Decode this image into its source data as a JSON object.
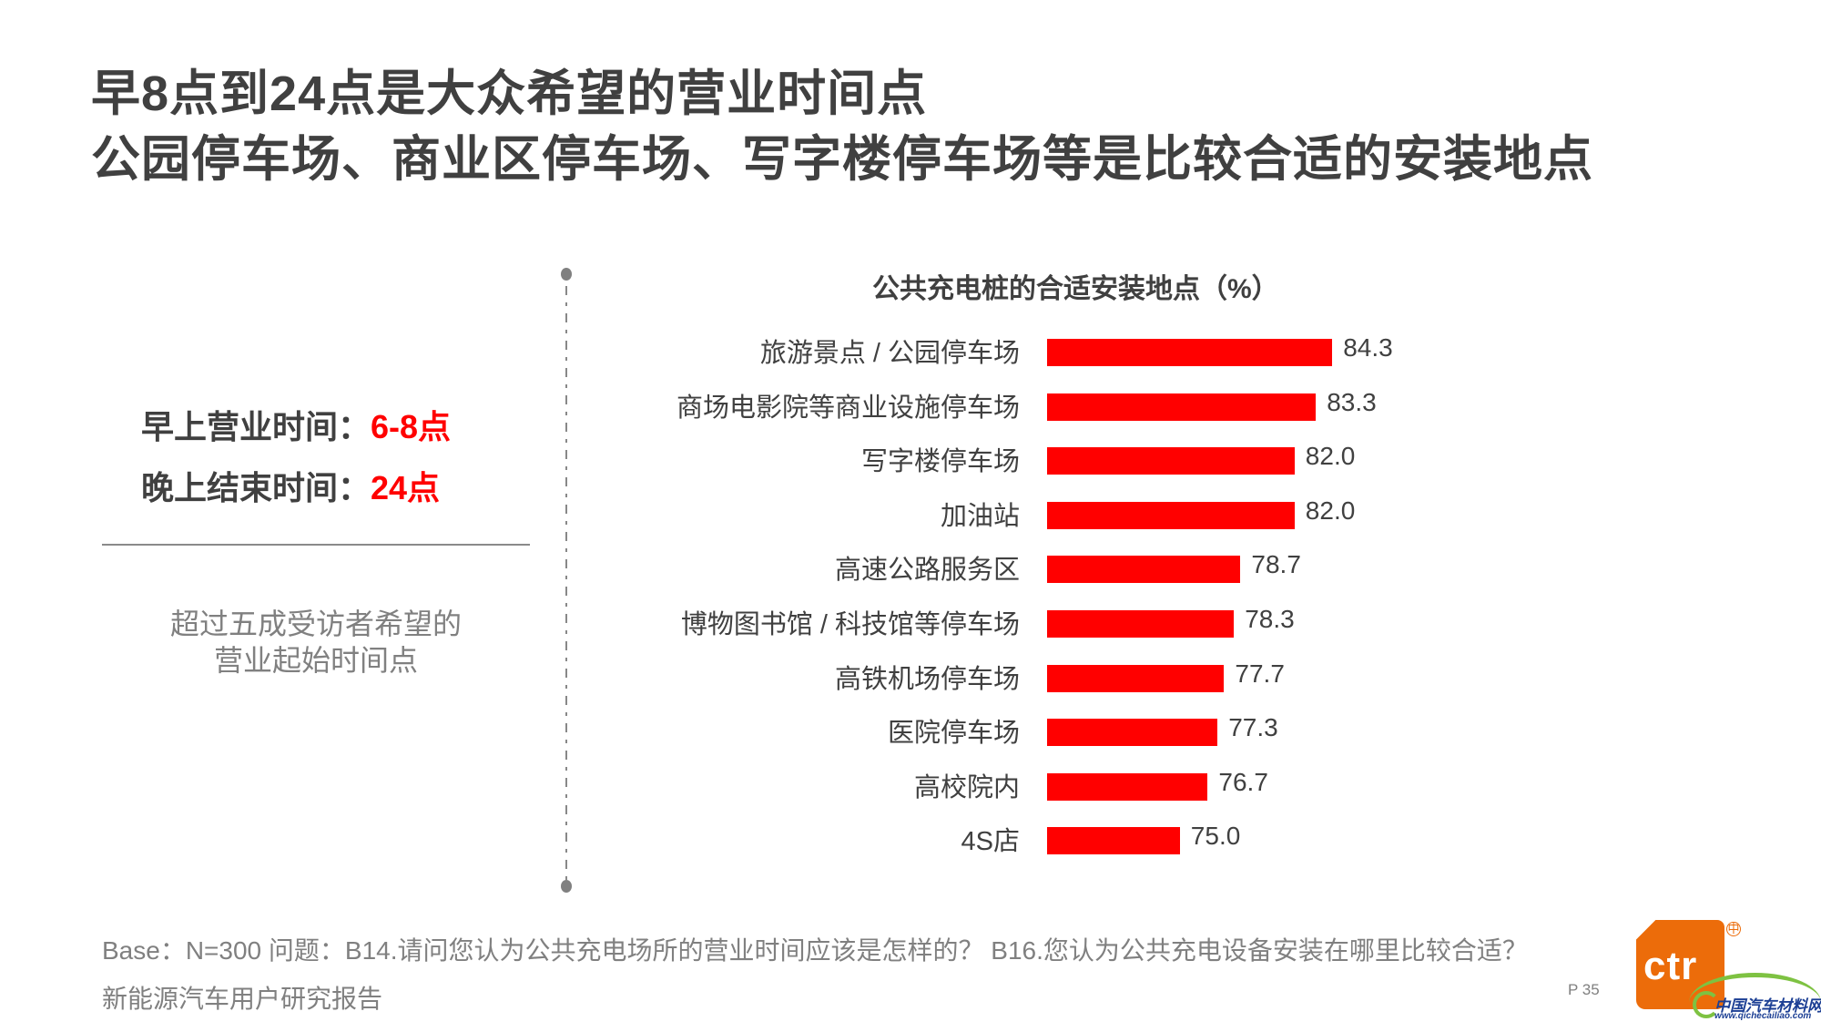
{
  "header": {
    "title_line1": "早8点到24点是大众希望的营业时间点",
    "title_line2": "公园停车场、商业区停车场、写字楼停车场等是比较合适的安装地点"
  },
  "left_panel": {
    "morning_label": "早上营业时间：",
    "morning_value": "6-8点",
    "evening_label": "晚上结束时间：",
    "evening_value": "24点",
    "note_line1": "超过五成受访者希望的",
    "note_line2": "营业起始时间点"
  },
  "colors": {
    "bar": "#ff0000",
    "highlight": "#ff0000",
    "text": "#404040",
    "muted": "#808080",
    "logo": "#ec6c0a"
  },
  "chart_data": {
    "type": "bar",
    "orientation": "horizontal",
    "title": "公共充电桩的合适安装地点（%）",
    "xlabel": "",
    "ylabel": "",
    "grid": false,
    "legend": null,
    "categories": [
      "旅游景点 / 公园停车场",
      "商场电影院等商业设施停车场",
      "写字楼停车场",
      "加油站",
      "高速公路服务区",
      "博物图书馆 / 科技馆等停车场",
      "高铁机场停车场",
      "医院停车场",
      "高校院内",
      "4S店"
    ],
    "values": [
      84.3,
      83.3,
      82.0,
      82.0,
      78.7,
      78.3,
      77.7,
      77.3,
      76.7,
      75.0
    ],
    "value_labels": [
      "84.3",
      "83.3",
      "82.0",
      "82.0",
      "78.7",
      "78.3",
      "77.7",
      "77.3",
      "76.7",
      "75.0"
    ]
  },
  "footer": {
    "base_question": "Base：N=300    问题：B14.请问您认为公共充电场所的营业时间应该是怎样的？  B16.您认为公共充电设备安装在哪里比较合适？",
    "report_name": "新能源汽车用户研究报告",
    "page": "P 35"
  },
  "logo": {
    "text": "ctr",
    "reg_mark": "中"
  },
  "watermark": {
    "name": "中国汽车材料网",
    "url": "www.qichecailiao.com"
  }
}
